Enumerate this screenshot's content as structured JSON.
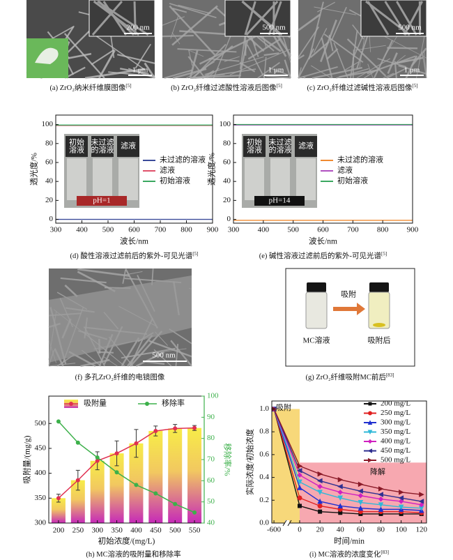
{
  "images": [
    {
      "caption": "(a) ZrO₂纳米纤维膜图像",
      "ref": "[5]",
      "scale_bars": [
        "200 nm",
        "1 μm"
      ]
    },
    {
      "caption": "(b) ZrO₂纤维过滤酸性溶液后图像",
      "ref": "[5]",
      "scale_bars": [
        "500 nm",
        "1 μm"
      ]
    },
    {
      "caption": "(c) ZrO₂纤维过滤碱性溶液后图像",
      "ref": "[5]",
      "scale_bars": [
        "500 nm",
        "1 μm"
      ]
    },
    {
      "caption": "(f) 多孔ZrO₂纤维的电镜图像",
      "scale_bars": [
        "500 nm"
      ]
    },
    {
      "caption": "(g) ZrO₂纤维吸附MC前后",
      "ref": "[83]",
      "labels": [
        "吸附",
        "MC溶液",
        "吸附后"
      ]
    }
  ],
  "chart_data": [
    {
      "type": "line",
      "caption": "(d) 酸性溶液过滤前后的紫外-可见光谱",
      "ref": "[5]",
      "xlabel": "波长/nm",
      "ylabel": "透光度/%",
      "x": [
        300,
        900
      ],
      "xlim": [
        300,
        900
      ],
      "xticks": [
        300,
        400,
        500,
        600,
        700,
        800,
        900
      ],
      "ylim": [
        -4,
        110
      ],
      "yticks": [
        0,
        20,
        40,
        60,
        80,
        100
      ],
      "series": [
        {
          "name": "未过滤的溶液",
          "color": "#3b4b9a",
          "values": [
            0,
            0
          ]
        },
        {
          "name": "滤液",
          "color": "#e0506a",
          "values": [
            99,
            99
          ]
        },
        {
          "name": "初始溶液",
          "color": "#3aa860",
          "values": [
            99.5,
            99.5
          ]
        }
      ],
      "inset": {
        "labels": [
          [
            "初始",
            "溶液"
          ],
          [
            "未过滤",
            "的溶液"
          ],
          [
            "滤液"
          ]
        ],
        "tag": "pH=1",
        "tag_color": "#a82828"
      }
    },
    {
      "type": "line",
      "caption": "(e) 碱性溶液过滤前后的紫外-可见光谱",
      "ref": "[5]",
      "xlabel": "波长/nm",
      "ylabel": "透光度/%",
      "x": [
        300,
        900
      ],
      "xlim": [
        300,
        900
      ],
      "xticks": [
        300,
        400,
        500,
        600,
        700,
        800,
        900
      ],
      "ylim": [
        -4,
        110
      ],
      "yticks": [
        0,
        20,
        40,
        60,
        80,
        100
      ],
      "series": [
        {
          "name": "未过滤的溶液",
          "color": "#f08a30",
          "values": [
            -1,
            -1
          ]
        },
        {
          "name": "滤液",
          "color": "#b050c0",
          "values": [
            99.5,
            99.5
          ]
        },
        {
          "name": "初始溶液",
          "color": "#3aa860",
          "values": [
            100,
            100
          ]
        }
      ],
      "inset": {
        "labels": [
          [
            "初始",
            "溶液"
          ],
          [
            "未过滤",
            "的溶液"
          ],
          [
            "滤液"
          ]
        ],
        "tag": "pH=14",
        "tag_color": "#111111"
      }
    },
    {
      "type": "combo",
      "caption": "(h) MC溶液的吸附量和移除率",
      "xlabel": "初始浓度/(mg/L)",
      "ylabel": "吸附量/(mg/g)",
      "y2label": "移除率/%",
      "categories": [
        200,
        250,
        300,
        350,
        400,
        450,
        500,
        550
      ],
      "ylim": [
        300,
        555
      ],
      "yticks": [
        300,
        350,
        400,
        450,
        500
      ],
      "y2lim": [
        40,
        100
      ],
      "y2ticks": [
        40,
        50,
        60,
        70,
        80,
        90,
        100
      ],
      "series": [
        {
          "name": "吸附量",
          "color": "#e03050",
          "values": [
            350,
            386,
            425,
            440,
            460,
            485,
            490,
            491
          ],
          "errors": [
            8,
            20,
            18,
            25,
            28,
            10,
            8,
            5
          ]
        },
        {
          "name": "移除率",
          "color": "#3cb04a",
          "axis": "y2",
          "values": [
            88,
            78,
            71,
            64,
            58,
            54,
            49,
            45
          ]
        }
      ]
    },
    {
      "type": "line",
      "caption": "(i) MC溶液的浓度变化",
      "ref": "[83]",
      "xlabel": "时间/min",
      "ylabel": "实际浓度/初始浓度",
      "x": [
        -600,
        0,
        20,
        40,
        60,
        80,
        100,
        120
      ],
      "xlim": [
        -650,
        125
      ],
      "xticks": [
        -600,
        0,
        20,
        40,
        60,
        80,
        100,
        120
      ],
      "axis_break": true,
      "ylim": [
        0,
        1.07
      ],
      "yticks": [
        {
          "value": 0,
          "label": "0.0"
        },
        0.2,
        0.4,
        0.6,
        0.8,
        {
          "value": 1,
          "label": "1.0"
        }
      ],
      "regions": [
        {
          "label": "吸附",
          "color": "#f7d87a",
          "x": [
            -650,
            0
          ],
          "y": [
            0,
            1
          ]
        },
        {
          "label": "降解",
          "color": "#f7a8b0",
          "x": [
            0,
            125
          ],
          "y": [
            0,
            0.53
          ]
        }
      ],
      "series": [
        {
          "name": "200 mg/L",
          "color": "#111111",
          "marker": "square",
          "values": [
            1,
            0.15,
            0.1,
            0.09,
            0.08,
            0.08,
            0.08,
            0.08
          ]
        },
        {
          "name": "250 mg/L",
          "color": "#e02020",
          "marker": "circle",
          "values": [
            1,
            0.22,
            0.15,
            0.12,
            0.1,
            0.1,
            0.1,
            0.09
          ]
        },
        {
          "name": "300 mg/L",
          "color": "#2030d0",
          "marker": "up",
          "values": [
            1,
            0.31,
            0.19,
            0.15,
            0.13,
            0.12,
            0.12,
            0.11
          ]
        },
        {
          "name": "350 mg/L",
          "color": "#30b8d8",
          "marker": "down",
          "values": [
            1,
            0.36,
            0.27,
            0.22,
            0.18,
            0.16,
            0.14,
            0.13
          ]
        },
        {
          "name": "400 mg/L",
          "color": "#d020c0",
          "marker": "diamond",
          "values": [
            1,
            0.42,
            0.32,
            0.27,
            0.24,
            0.21,
            0.19,
            0.16
          ]
        },
        {
          "name": "450 mg/L",
          "color": "#303090",
          "marker": "left",
          "values": [
            1,
            0.46,
            0.37,
            0.32,
            0.28,
            0.25,
            0.22,
            0.19
          ]
        },
        {
          "name": "500 mg/L",
          "color": "#8a1a28",
          "marker": "right",
          "values": [
            1,
            0.5,
            0.43,
            0.38,
            0.34,
            0.3,
            0.27,
            0.25
          ]
        }
      ]
    }
  ]
}
